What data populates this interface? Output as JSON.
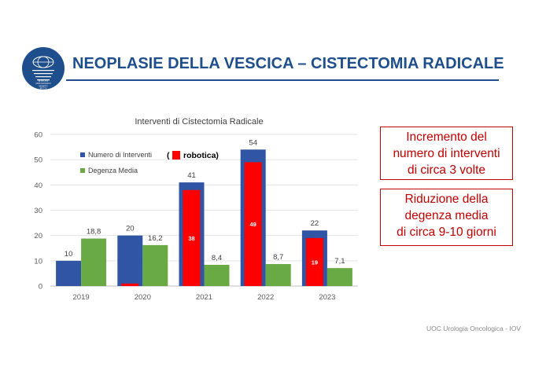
{
  "slide": {
    "title": "NEOPLASIE DELLA VESCICA – CISTECTOMIA RADICALE",
    "logo_text": [
      "ISTITUTO",
      "ONCOLOGICO",
      "VENETO",
      "IRCCS"
    ],
    "footer": "UOC Urologia Oncologica  - IOV",
    "brand_color": "#1f4e8c"
  },
  "callouts": [
    {
      "lines": [
        "Incremento del",
        "numero di interventi",
        "di circa 3 volte"
      ],
      "color": "#c00000"
    },
    {
      "lines": [
        "Riduzione della",
        "degenza media",
        "di circa 9-10 giorni"
      ],
      "color": "#c00000"
    }
  ],
  "chart_data": {
    "type": "bar",
    "title": "Interventi di Cistectomia Radicale",
    "categories": [
      "2019",
      "2020",
      "2021",
      "2022",
      "2023"
    ],
    "ylim": [
      0,
      60
    ],
    "yticks": [
      0,
      10,
      20,
      30,
      40,
      50,
      60
    ],
    "grid": true,
    "legend_position": "top-left",
    "series": [
      {
        "name": "Numero di Interventi",
        "color": "#2f55a4",
        "values": [
          10,
          20,
          41,
          54,
          22
        ],
        "labels": [
          "10",
          "20",
          "41",
          "54",
          "22"
        ]
      },
      {
        "name": "Degenza Media",
        "color": "#6aaa45",
        "values": [
          18.8,
          16.2,
          8.4,
          8.7,
          7.1
        ],
        "labels": [
          "18,8",
          "16,2",
          "8,4",
          "8,7",
          "7,1"
        ]
      }
    ],
    "overlay": {
      "name": "robotica",
      "color": "#ff0000",
      "legend_prefix": "(",
      "values": [
        0,
        1,
        38,
        49,
        19
      ],
      "labels": [
        "",
        "",
        "38",
        "49",
        "19"
      ]
    }
  }
}
